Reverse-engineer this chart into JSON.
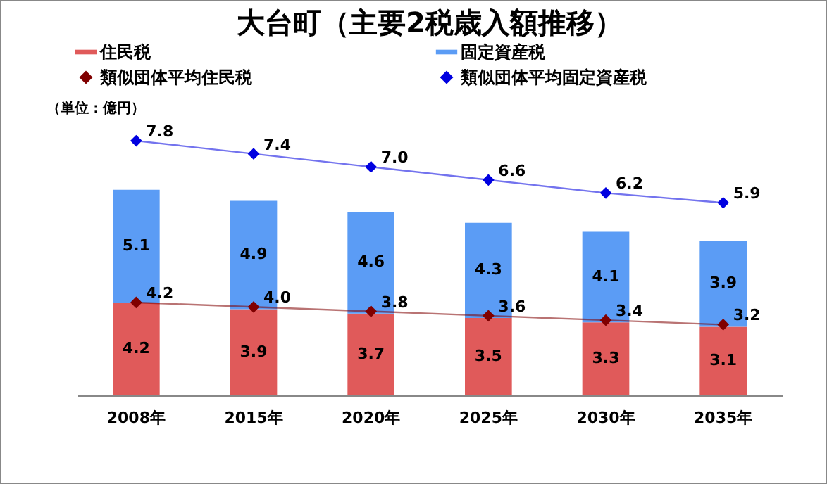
{
  "chart_data": {
    "type": "bar",
    "title": "大台町（主要2税歳入額推移）",
    "annotations": [
      "（単位：億円）"
    ],
    "categories": [
      "2008年",
      "2015年",
      "2020年",
      "2025年",
      "2030年",
      "2035年"
    ],
    "stacked": true,
    "data_labels": true,
    "legend": "top",
    "tick_labels": "x",
    "grid": false,
    "marker": "diamond",
    "series": [
      {
        "name": "住民税",
        "color": "#e05a5a",
        "values": [
          4.2,
          3.9,
          3.7,
          3.5,
          3.3,
          3.1
        ],
        "value_labels": [
          "4.2",
          "3.9",
          "3.7",
          "3.5",
          "3.3",
          "3.1"
        ]
      },
      {
        "name": "固定資産税",
        "color": "#5b9cf5",
        "values": [
          5.1,
          4.9,
          4.6,
          4.3,
          4.1,
          3.9
        ]
      },
      {
        "name": "類似団体平均住民税",
        "type": "line",
        "color": "#800000",
        "values": [
          4.2,
          4.0,
          3.8,
          3.6,
          3.4,
          3.2
        ],
        "value_labels": [
          "4.2",
          "4.0",
          "3.8",
          "3.6",
          "3.4",
          "3.2"
        ]
      },
      {
        "name": "類似団体平均固定資産税",
        "type": "line",
        "axis": "y2",
        "color": "#0000e0",
        "values": [
          7.8,
          7.4,
          7.0,
          6.6,
          6.2,
          5.9
        ],
        "value_labels": [
          "7.8",
          "7.4",
          "7.0",
          "6.6",
          "6.2",
          "5.9"
        ]
      }
    ]
  }
}
